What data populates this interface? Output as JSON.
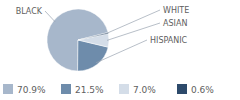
{
  "chart_data": {
    "type": "pie",
    "categories": [
      "BLACK",
      "HISPANIC",
      "ASIAN",
      "WHITE"
    ],
    "values": [
      70.9,
      21.5,
      7.0,
      0.6
    ],
    "value_labels": [
      "70.9%",
      "21.5%",
      "7.0%",
      "0.6%"
    ],
    "colors": [
      "#a7b7cb",
      "#6e8cab",
      "#d4dde8",
      "#2d4a6b"
    ],
    "legend": "bottom"
  }
}
